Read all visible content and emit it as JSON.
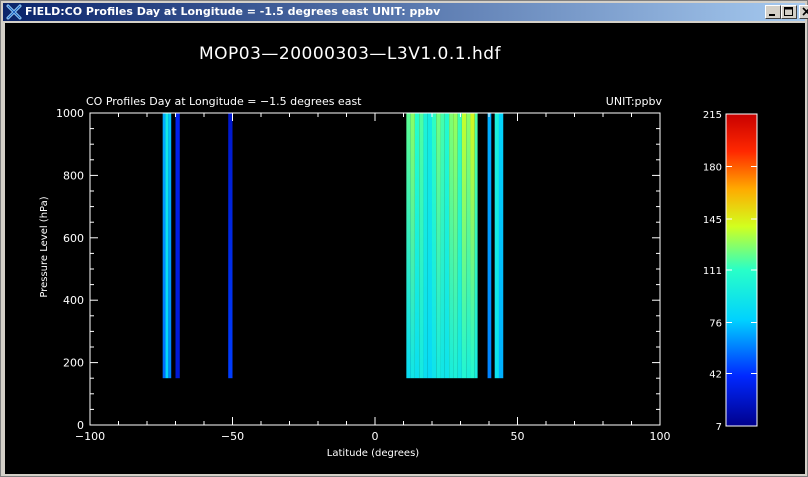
{
  "window": {
    "title": "FIELD:CO Profiles Day at Longitude =  -1.5 degrees east   UNIT: ppbv",
    "controls": [
      "minimize",
      "maximize",
      "close"
    ]
  },
  "plot": {
    "file_title": "MOP03—20000303—L3V1.0.1.hdf",
    "subtitle": "CO Profiles Day at Longitude =  −1.5 degrees east",
    "unit_label": "UNIT:ppbv"
  },
  "colors": {
    "titlebar_start": "#0a246a",
    "titlebar_end": "#a6caf0",
    "background": "#000000",
    "foreground": "#ffffff"
  },
  "chart_data": {
    "type": "heatmap",
    "title": "CO Profiles Day at Longitude =  −1.5 degrees east",
    "xlabel": "Latitude (degrees)",
    "ylabel": "Pressure Level (hPa)",
    "xlim": [
      -100,
      100
    ],
    "ylim": [
      0,
      1000
    ],
    "x_ticks": [
      "−100",
      "−50",
      "0",
      "50",
      "100"
    ],
    "x_tick_values": [
      -100,
      -50,
      0,
      50,
      100
    ],
    "y_ticks": [
      "0",
      "200",
      "400",
      "600",
      "800",
      "1000"
    ],
    "y_tick_values": [
      0,
      200,
      400,
      600,
      800,
      1000
    ],
    "pressure_range": [
      150,
      1000
    ],
    "colorbar": {
      "ticks": [
        "7",
        "42",
        "76",
        "111",
        "145",
        "180",
        "215"
      ],
      "tick_values": [
        7,
        42,
        76,
        111,
        145,
        180,
        215
      ],
      "range": [
        7,
        215
      ],
      "colormap": "rainbow"
    },
    "bands": [
      {
        "lat": [
          -74.5,
          -73.5
        ],
        "top": 70,
        "bottom": 55
      },
      {
        "lat": [
          -73.5,
          -72.5
        ],
        "top": 95,
        "bottom": 80
      },
      {
        "lat": [
          -72.5,
          -71.5
        ],
        "top": 75,
        "bottom": 60
      },
      {
        "lat": [
          -70.0,
          -68.5
        ],
        "top": 35,
        "bottom": 28
      },
      {
        "lat": [
          -51.5,
          -50.0
        ],
        "top": 25,
        "bottom": 45
      },
      {
        "lat": [
          11.0,
          12.5
        ],
        "top": 120,
        "bottom": 85
      },
      {
        "lat": [
          12.5,
          14.0
        ],
        "top": 128,
        "bottom": 92
      },
      {
        "lat": [
          14.0,
          15.5
        ],
        "top": 110,
        "bottom": 88
      },
      {
        "lat": [
          15.5,
          17.0
        ],
        "top": 118,
        "bottom": 95
      },
      {
        "lat": [
          17.0,
          18.5
        ],
        "top": 102,
        "bottom": 86
      },
      {
        "lat": [
          18.5,
          20.0
        ],
        "top": 96,
        "bottom": 84
      },
      {
        "lat": [
          20.0,
          21.5
        ],
        "top": 112,
        "bottom": 90
      },
      {
        "lat": [
          21.5,
          23.0
        ],
        "top": 124,
        "bottom": 96
      },
      {
        "lat": [
          23.0,
          24.5
        ],
        "top": 116,
        "bottom": 92
      },
      {
        "lat": [
          24.5,
          26.0
        ],
        "top": 108,
        "bottom": 90
      },
      {
        "lat": [
          26.0,
          27.5
        ],
        "top": 126,
        "bottom": 98
      },
      {
        "lat": [
          27.5,
          29.0
        ],
        "top": 130,
        "bottom": 100
      },
      {
        "lat": [
          29.0,
          30.5
        ],
        "top": 114,
        "bottom": 94
      },
      {
        "lat": [
          30.5,
          32.0
        ],
        "top": 138,
        "bottom": 104
      },
      {
        "lat": [
          32.0,
          33.5
        ],
        "top": 128,
        "bottom": 100
      },
      {
        "lat": [
          33.5,
          35.0
        ],
        "top": 142,
        "bottom": 106
      },
      {
        "lat": [
          35.0,
          36.0
        ],
        "top": 118,
        "bottom": 96
      },
      {
        "lat": [
          39.5,
          40.8
        ],
        "top": 70,
        "bottom": 60
      },
      {
        "lat": [
          42.0,
          43.5
        ],
        "top": 100,
        "bottom": 88
      },
      {
        "lat": [
          43.5,
          45.0
        ],
        "top": 80,
        "bottom": 70
      }
    ]
  }
}
